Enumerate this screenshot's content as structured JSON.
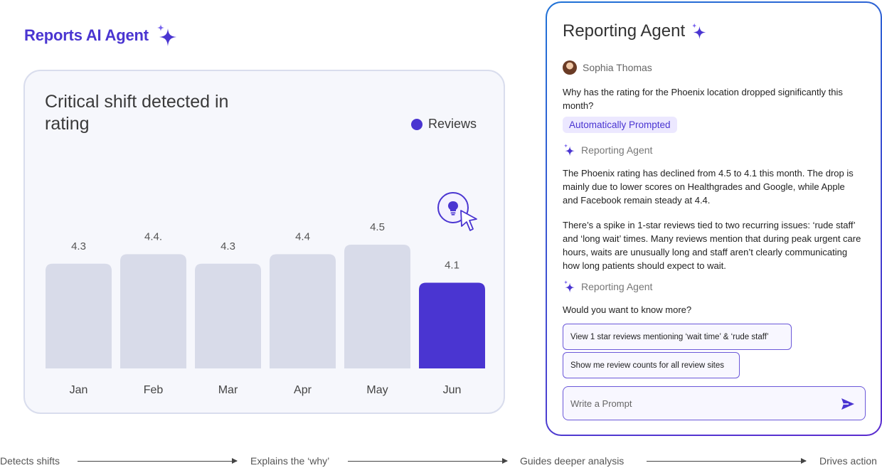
{
  "brand": {
    "title": "Reports AI Agent"
  },
  "chart_card": {
    "title": "Critical shift detected in rating",
    "legend": "Reviews"
  },
  "chart_data": {
    "type": "bar",
    "title": "Critical shift detected in rating",
    "categories": [
      "Jan",
      "Feb",
      "Mar",
      "Apr",
      "May",
      "Jun"
    ],
    "values": [
      4.3,
      4.4,
      4.3,
      4.4,
      4.5,
      4.1
    ],
    "value_labels": [
      "4.3",
      "4.4.",
      "4.3",
      "4.4",
      "4.5",
      "4.1"
    ],
    "series": [
      {
        "name": "Reviews",
        "values": [
          4.3,
          4.4,
          4.3,
          4.4,
          4.5,
          4.1
        ]
      }
    ],
    "highlight_index": 5,
    "colors": {
      "bar": "#d8dbe9",
      "highlight": "#4a35d1"
    },
    "grid": false,
    "legend_position": "top-right"
  },
  "agent": {
    "title": "Reporting Agent",
    "user_name": "Sophia Thomas",
    "user_question": "Why has the rating for the Phoenix location dropped significantly this month?",
    "prompt_chip": "Automatically Prompted",
    "agent_label_1": "Reporting Agent",
    "answer_1": "The Phoenix rating has declined from 4.5 to 4.1 this month. The drop is mainly due to lower scores on Healthgrades and Google, while Apple and Facebook remain steady at 4.4.",
    "answer_2": "There’s a spike in 1-star reviews tied to two recurring issues: ‘rude staff’ and ‘long wait’ times. Many reviews mention that during peak urgent care hours, waits are unusually long and staff aren’t clearly communicating how long patients should expect to wait.",
    "agent_label_2": "Reporting Agent",
    "followup": "Would you want to know more?",
    "suggestions": [
      "View 1 star reviews mentioning ‘wait time’ & ‘rude staff’",
      "Show me review counts for all review sites"
    ],
    "prompt_placeholder": "Write a Prompt"
  },
  "flow": {
    "steps": [
      "Detects shifts",
      "Explains the ‘why’",
      "Guides deeper analysis",
      "Drives action"
    ]
  },
  "colors": {
    "accent": "#4a35d1",
    "panel_border_start": "#1f72d6",
    "panel_border_end": "#5b2ccf"
  },
  "icons": [
    "sparkle-icon",
    "lightbulb-icon",
    "cursor-icon",
    "send-icon"
  ]
}
